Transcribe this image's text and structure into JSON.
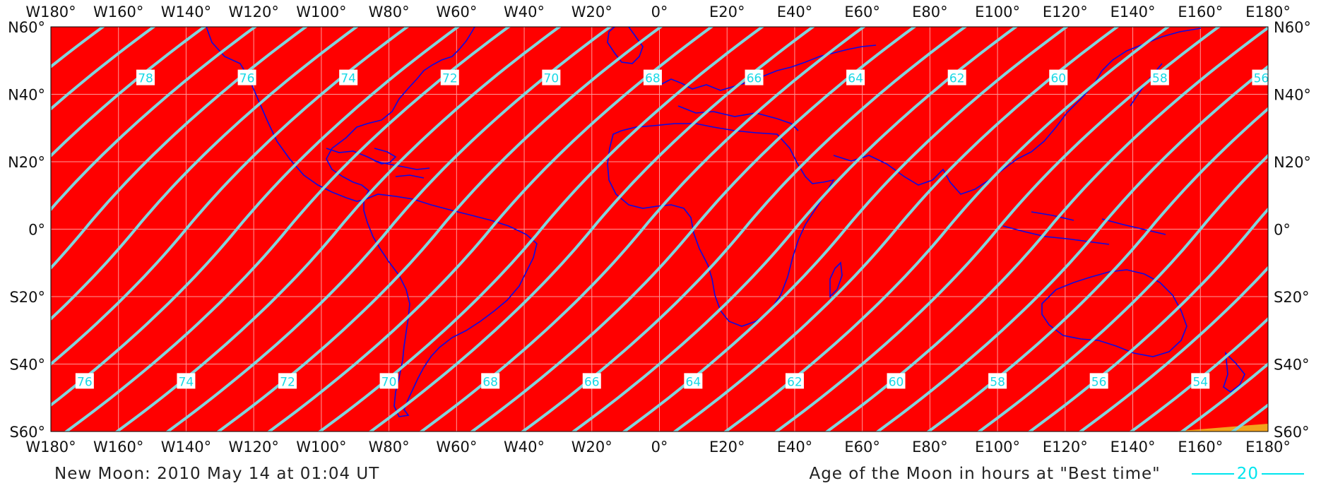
{
  "map": {
    "lon_range": [
      -180,
      180
    ],
    "lat_range": [
      -60,
      60
    ],
    "lon_ticks": [
      "W180°",
      "W160°",
      "W140°",
      "W120°",
      "W100°",
      "W80°",
      "W60°",
      "W40°",
      "W20°",
      "0°",
      "E20°",
      "E40°",
      "E60°",
      "E80°",
      "E100°",
      "E120°",
      "E140°",
      "E160°",
      "E180°"
    ],
    "lat_ticks": [
      "N60°",
      "N40°",
      "N20°",
      "0°",
      "S20°",
      "S40°",
      "S60°"
    ],
    "background_color": "#ff0000",
    "contour_color": "#7fd6dd",
    "coastline_color": "#0a0ae6",
    "grid_color": "#ff9a9a",
    "corner_patch_color": "#f2a31c",
    "contour_labels_north": [
      "78",
      "76",
      "74",
      "72",
      "70",
      "68",
      "66",
      "64",
      "62",
      "60",
      "58",
      "56"
    ],
    "contour_labels_south": [
      "76",
      "74",
      "72",
      "70",
      "68",
      "66",
      "64",
      "62",
      "60",
      "58",
      "56",
      "54"
    ],
    "contour_label_lons_north": [
      -152,
      -122,
      -92,
      -62,
      -32,
      -2,
      28,
      58,
      88,
      118,
      148,
      178
    ],
    "contour_label_lons_south": [
      -170,
      -140,
      -110,
      -80,
      -50,
      -20,
      10,
      40,
      70,
      100,
      130,
      160
    ]
  },
  "footer": {
    "new_moon_text": "New Moon: 2010 May 14 at 01:04 UT",
    "legend_text": "Age of the Moon in hours at \"Best time\"",
    "legend_sample_value": "20"
  }
}
